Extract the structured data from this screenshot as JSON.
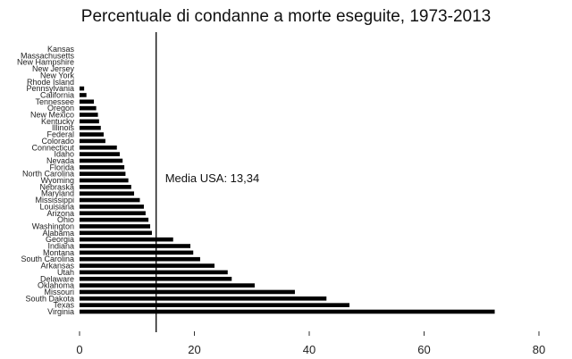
{
  "chart_data": {
    "type": "bar",
    "orientation": "horizontal",
    "title": "Percentuale di condanne a morte eseguite, 1973-2013",
    "xlim": [
      0,
      80
    ],
    "xticks": [
      0,
      20,
      40,
      60,
      80
    ],
    "xtick_labels": [
      "0",
      "20",
      "40",
      "60",
      "80"
    ],
    "grid": false,
    "categories": [
      "Kansas",
      "Massachusetts",
      "New Hampshire",
      "New Jersey",
      "New York",
      "Rhode Island",
      "Pennsylvania",
      "California",
      "Tennessee",
      "Oregon",
      "New Mexico",
      "Kentucky",
      "Illinois",
      "Federal",
      "Colorado",
      "Connecticut",
      "Idaho",
      "Nevada",
      "Florida",
      "North Carolina",
      "Wyoming",
      "Nebraska",
      "Maryland",
      "Mississippi",
      "Louisiana",
      "Arizona",
      "Ohio",
      "Washington",
      "Alabama",
      "Georgia",
      "Indiana",
      "Montana",
      "South Carolina",
      "Arkansas",
      "Utah",
      "Delaware",
      "Oklahoma",
      "Missouri",
      "South Dakota",
      "Texas",
      "Virginia"
    ],
    "values": [
      0,
      0,
      0,
      0,
      0,
      0,
      0.8,
      1.2,
      2.5,
      2.9,
      3.2,
      3.4,
      3.7,
      4.2,
      4.5,
      6.5,
      7.0,
      7.5,
      7.8,
      8.0,
      8.5,
      9.0,
      9.5,
      10.5,
      11.2,
      11.5,
      12.0,
      12.3,
      12.6,
      16.3,
      19.3,
      19.8,
      21.0,
      23.5,
      25.8,
      26.5,
      30.5,
      37.5,
      43.0,
      47.0,
      72.3
    ],
    "reference_line": {
      "value": 13.34,
      "label": "Media USA: 13,34"
    }
  }
}
